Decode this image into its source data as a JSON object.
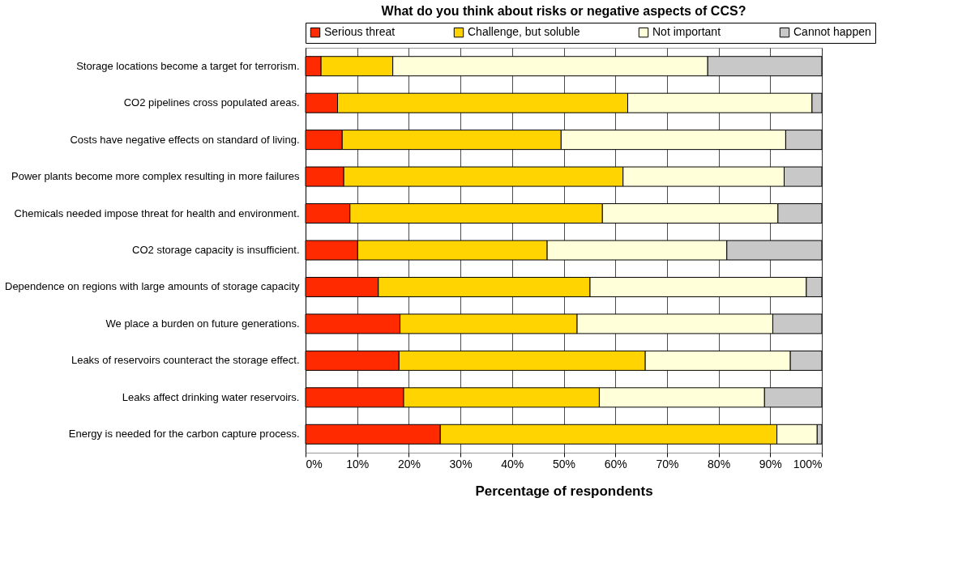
{
  "chart_data": {
    "type": "bar",
    "orientation": "horizontal",
    "stacked": true,
    "title": "What do you think about risks or negative aspects of CCS?",
    "xlabel": "Percentage of respondents",
    "categories": [
      "Storage locations become a target for terrorism.",
      "CO2 pipelines cross populated areas.",
      "Costs have negative effects on standard of living.",
      "Power plants become more complex resulting in more failures",
      "Chemicals needed impose threat for health and environment.",
      "CO2 storage capacity is insufficient.",
      "Dependence on regions with large amounts of storage capacity",
      "We place a burden on future generations.",
      "Leaks of reservoirs counteract the storage effect.",
      "Leaks affect drinking water reservoirs.",
      "Energy is needed for the carbon capture process."
    ],
    "series": [
      {
        "name": "Serious threat",
        "color": "#ff2a00",
        "values": [
          3.0,
          6.2,
          7.1,
          7.4,
          8.6,
          10.1,
          14.1,
          18.3,
          18.1,
          19.0,
          26.1
        ]
      },
      {
        "name": "Challenge, but soluble",
        "color": "#ffd400",
        "values": [
          13.9,
          56.2,
          42.4,
          54.1,
          48.9,
          36.7,
          41.0,
          34.3,
          47.7,
          37.9,
          65.2
        ]
      },
      {
        "name": "Not important",
        "color": "#ffffd9",
        "values": [
          61.0,
          35.7,
          43.5,
          31.2,
          34.0,
          34.8,
          41.9,
          37.9,
          28.1,
          32.0,
          7.8
        ]
      },
      {
        "name": "Cannot happen",
        "color": "#c8c8c8",
        "values": [
          22.1,
          1.9,
          7.0,
          7.3,
          8.5,
          18.4,
          3.0,
          9.5,
          6.1,
          11.1,
          0.9
        ]
      }
    ],
    "xlim": [
      0,
      100
    ],
    "xticks": [
      {
        "value": 0,
        "label": "0%"
      },
      {
        "value": 10,
        "label": "10%"
      },
      {
        "value": 20,
        "label": "20%"
      },
      {
        "value": 30,
        "label": "30%"
      },
      {
        "value": 40,
        "label": "40%"
      },
      {
        "value": 50,
        "label": "50%"
      },
      {
        "value": 60,
        "label": "60%"
      },
      {
        "value": 70,
        "label": "70%"
      },
      {
        "value": 80,
        "label": "80%"
      },
      {
        "value": 90,
        "label": "90%"
      },
      {
        "value": 100,
        "label": "100%"
      }
    ],
    "grid": "x",
    "legend": "top"
  }
}
